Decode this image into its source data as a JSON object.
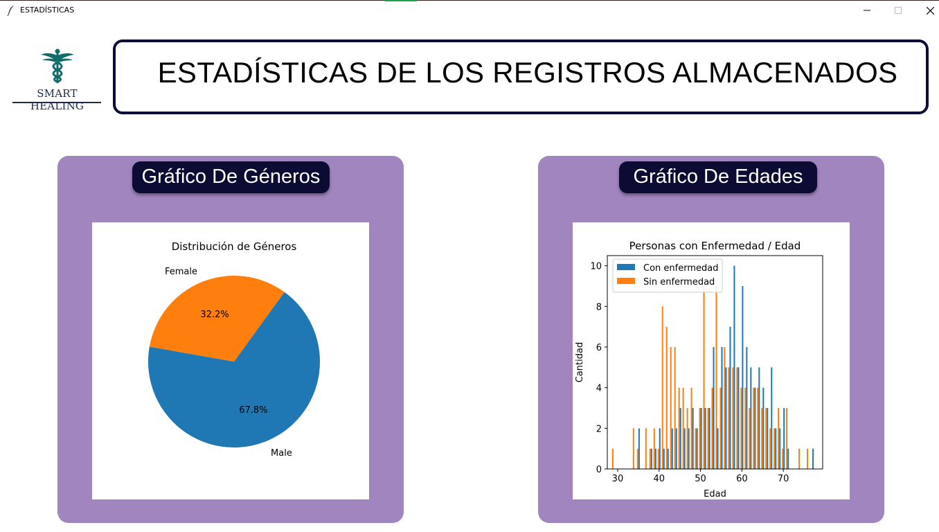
{
  "window": {
    "title": "ESTADÍSTICAS",
    "controls": [
      "minimize",
      "maximize",
      "close"
    ]
  },
  "logo": {
    "text": "SMART HEALING",
    "icon": "caduceus-icon"
  },
  "header": {
    "title": "ESTADÍSTICAS DE LOS REGISTROS ALMACENADOS"
  },
  "panels": {
    "genders": {
      "title": "Gráfico De Géneros"
    },
    "ages": {
      "title": "Gráfico De Edades"
    }
  },
  "colors": {
    "panel": "#a085bf",
    "pill": "#0b0b33",
    "series_blue": "#1f77b4",
    "series_orange": "#ff7f0e"
  },
  "chart_data": [
    {
      "type": "pie",
      "title": "Distribución de Géneros",
      "slices": [
        {
          "label": "Male",
          "value": 67.8,
          "pct_label": "67.8%",
          "color": "#1f77b4"
        },
        {
          "label": "Female",
          "value": 32.2,
          "pct_label": "32.2%",
          "color": "#ff7f0e"
        }
      ]
    },
    {
      "type": "bar",
      "title": "Personas con Enfermedad / Edad",
      "xlabel": "Edad",
      "ylabel": "Cantidad",
      "xlim": [
        27.5,
        79.5
      ],
      "ylim": [
        0,
        10.5
      ],
      "xticks": [
        30,
        40,
        50,
        60,
        70
      ],
      "yticks": [
        0,
        2,
        4,
        6,
        8,
        10
      ],
      "legend_position": "top-left",
      "series": [
        {
          "name": "Con enfermedad",
          "color": "#1f77b4",
          "points": [
            [
              35,
              2
            ],
            [
              38,
              1
            ],
            [
              39,
              1
            ],
            [
              40,
              2
            ],
            [
              41,
              1
            ],
            [
              42,
              1
            ],
            [
              43,
              2
            ],
            [
              44,
              2
            ],
            [
              45,
              3
            ],
            [
              46,
              2
            ],
            [
              47,
              2
            ],
            [
              48,
              3
            ],
            [
              49,
              2
            ],
            [
              50,
              3
            ],
            [
              51,
              3
            ],
            [
              52,
              3
            ],
            [
              53,
              6
            ],
            [
              54,
              2
            ],
            [
              55,
              6
            ],
            [
              56,
              5
            ],
            [
              57,
              7
            ],
            [
              58,
              10
            ],
            [
              59,
              5
            ],
            [
              60,
              9
            ],
            [
              61,
              6
            ],
            [
              62,
              5
            ],
            [
              63,
              4
            ],
            [
              64,
              5
            ],
            [
              65,
              4
            ],
            [
              66,
              3
            ],
            [
              67,
              5
            ],
            [
              68,
              2
            ],
            [
              69,
              2
            ],
            [
              70,
              3
            ],
            [
              71,
              1
            ],
            [
              77,
              1
            ]
          ]
        },
        {
          "name": "Sin enfermedad",
          "color": "#ff7f0e",
          "points": [
            [
              29,
              1
            ],
            [
              34,
              2
            ],
            [
              35,
              1
            ],
            [
              37,
              2
            ],
            [
              38,
              1
            ],
            [
              39,
              2
            ],
            [
              40,
              1
            ],
            [
              41,
              8
            ],
            [
              42,
              7
            ],
            [
              43,
              6
            ],
            [
              44,
              6
            ],
            [
              45,
              4
            ],
            [
              46,
              4
            ],
            [
              47,
              3
            ],
            [
              48,
              4
            ],
            [
              49,
              2
            ],
            [
              50,
              3
            ],
            [
              51,
              9
            ],
            [
              52,
              3
            ],
            [
              53,
              4
            ],
            [
              54,
              9
            ],
            [
              55,
              4
            ],
            [
              56,
              6
            ],
            [
              57,
              5
            ],
            [
              58,
              5
            ],
            [
              59,
              5
            ],
            [
              60,
              4
            ],
            [
              61,
              4
            ],
            [
              62,
              3
            ],
            [
              63,
              4
            ],
            [
              64,
              4
            ],
            [
              65,
              3
            ],
            [
              66,
              3
            ],
            [
              67,
              2
            ],
            [
              68,
              2
            ],
            [
              69,
              3
            ],
            [
              70,
              1
            ],
            [
              71,
              3
            ],
            [
              74,
              1
            ],
            [
              76,
              1
            ]
          ]
        }
      ]
    }
  ]
}
